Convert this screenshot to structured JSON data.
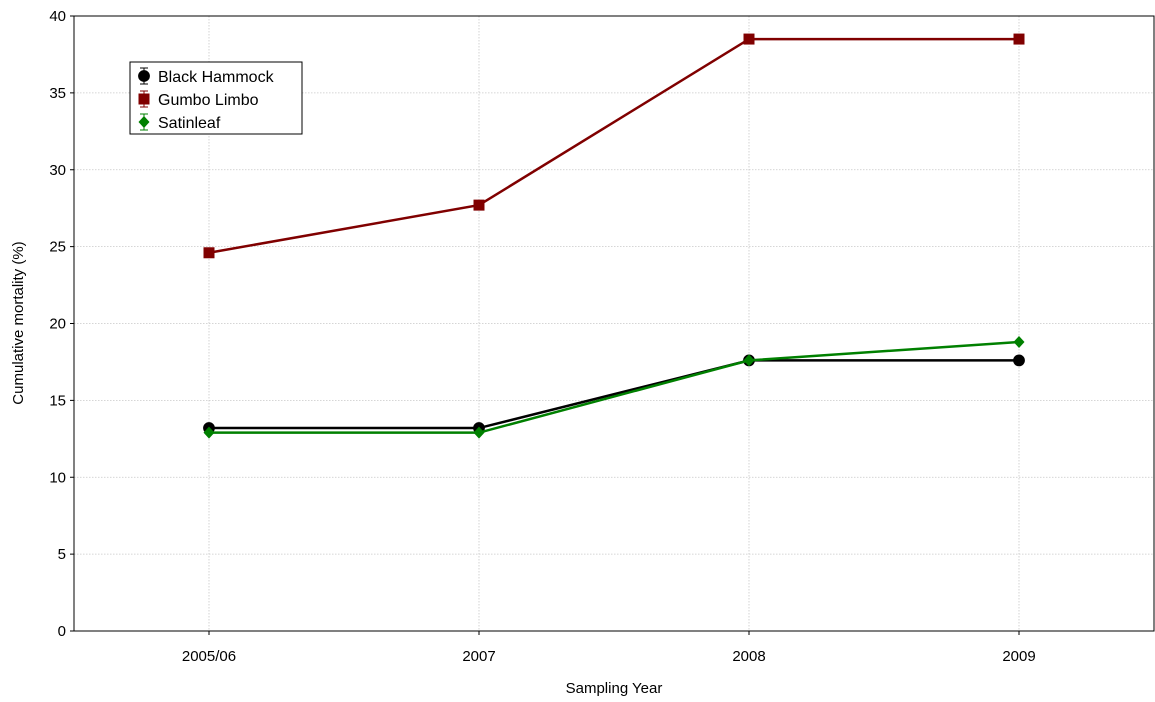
{
  "chart_data": {
    "type": "line",
    "xlabel": "Sampling Year",
    "ylabel": "Cumulative mortality (%)",
    "categories": [
      "2005/06",
      "2007",
      "2008",
      "2009"
    ],
    "ylim": [
      0,
      40
    ],
    "yticks": [
      0,
      5,
      10,
      15,
      20,
      25,
      30,
      35,
      40
    ],
    "grid": true,
    "legend_position": "top-left",
    "series": [
      {
        "name": "Black Hammock",
        "values": [
          13.2,
          13.2,
          17.6,
          17.6
        ],
        "color": "#000000",
        "marker": "circle"
      },
      {
        "name": "Gumbo Limbo",
        "values": [
          24.6,
          27.7,
          38.5,
          38.5
        ],
        "color": "#800000",
        "marker": "square"
      },
      {
        "name": "Satinleaf",
        "values": [
          12.9,
          12.9,
          17.6,
          18.8
        ],
        "color": "#008000",
        "marker": "diamond"
      }
    ]
  }
}
